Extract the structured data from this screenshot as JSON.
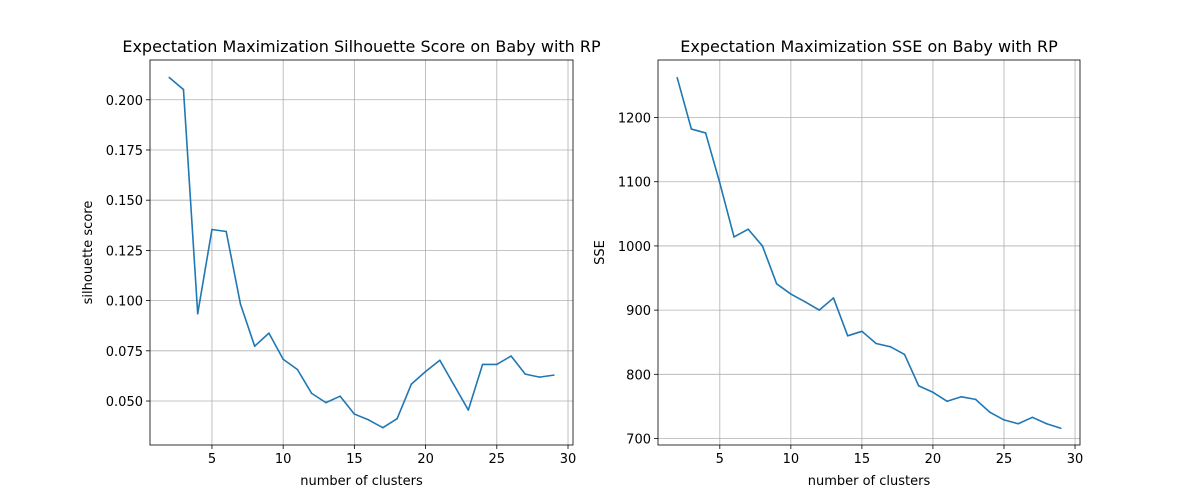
{
  "chart_data": [
    {
      "type": "line",
      "title": "Expectation Maximization Silhouette Score on Baby with RP",
      "xlabel": "number of clusters",
      "ylabel": "silhouette score",
      "xlim": [
        0.65,
        30.35
      ],
      "ylim": [
        0.0281,
        0.2198
      ],
      "xticks": [
        5,
        10,
        15,
        20,
        25,
        30
      ],
      "xtick_labels": [
        "5",
        "10",
        "15",
        "20",
        "25",
        "30"
      ],
      "yticks": [
        0.05,
        0.075,
        0.1,
        0.125,
        0.15,
        0.175,
        0.2
      ],
      "ytick_labels": [
        "0.050",
        "0.075",
        "0.100",
        "0.125",
        "0.150",
        "0.175",
        "0.200"
      ],
      "grid": true,
      "color": "#1f77b4",
      "x": [
        2,
        3,
        4,
        5,
        6,
        7,
        8,
        9,
        10,
        11,
        12,
        13,
        14,
        15,
        16,
        17,
        18,
        19,
        20,
        21,
        22,
        23,
        24,
        25,
        26,
        27,
        28,
        29
      ],
      "y": [
        0.2111,
        0.2051,
        0.0935,
        0.1354,
        0.1344,
        0.0983,
        0.0773,
        0.0838,
        0.0708,
        0.0657,
        0.0538,
        0.0492,
        0.0524,
        0.0435,
        0.0406,
        0.0367,
        0.0412,
        0.0584,
        0.0647,
        0.0703,
        0.0579,
        0.0455,
        0.0682,
        0.0682,
        0.0724,
        0.0634,
        0.0619,
        0.0629
      ]
    },
    {
      "type": "line",
      "title": "Expectation Maximization SSE on Baby with RP",
      "xlabel": "number of clusters",
      "ylabel": "SSE",
      "xlim": [
        0.65,
        30.35
      ],
      "ylim": [
        689.9,
        1289.6
      ],
      "xticks": [
        5,
        10,
        15,
        20,
        25,
        30
      ],
      "xtick_labels": [
        "5",
        "10",
        "15",
        "20",
        "25",
        "30"
      ],
      "yticks": [
        700,
        800,
        900,
        1000,
        1100,
        1200
      ],
      "ytick_labels": [
        "700",
        "800",
        "900",
        "1000",
        "1100",
        "1200"
      ],
      "grid": true,
      "color": "#1f77b4",
      "x": [
        2,
        3,
        4,
        5,
        6,
        7,
        8,
        9,
        10,
        11,
        12,
        13,
        14,
        15,
        16,
        17,
        18,
        19,
        20,
        21,
        22,
        23,
        24,
        25,
        26,
        27,
        28,
        29
      ],
      "y": [
        1262,
        1182,
        1176,
        1098,
        1014,
        1026,
        1000,
        941,
        925,
        913,
        900,
        919,
        860,
        867,
        848,
        843,
        831,
        782,
        772,
        758,
        765,
        761,
        741,
        729,
        723,
        733,
        723,
        716
      ]
    }
  ]
}
